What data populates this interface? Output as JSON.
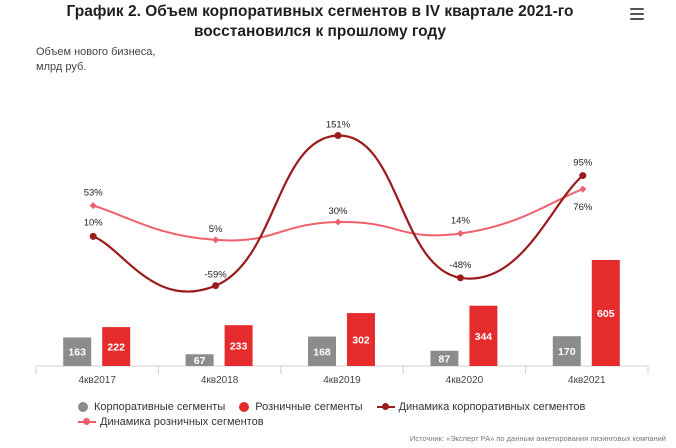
{
  "title_line1": "График 2. Объем корпоративных сегментов в IV квартале 2021-го",
  "title_line2": "восстановился к прошлому году",
  "menu_icon": "hamburger-menu-icon",
  "source": "Источник: «Эксперт РА» по данным анкетирования лизинговых компаний",
  "chart_data": {
    "type": "bar",
    "ylabel_line1": "Объем нового бизнеса,",
    "ylabel_line2": "млрд руб.",
    "categories": [
      "4кв2017",
      "4кв2018",
      "4кв2019",
      "4кв2020",
      "4кв2021"
    ],
    "series": [
      {
        "name": "Корпоративные сегменты",
        "type": "bar",
        "color": "#8c8c8c",
        "values": [
          163,
          67,
          168,
          87,
          170
        ]
      },
      {
        "name": "Розничные сегменты",
        "type": "bar",
        "color": "#e52b2b",
        "values": [
          222,
          233,
          302,
          344,
          605
        ]
      },
      {
        "name": "Динамика корпоративных сегментов",
        "type": "line",
        "color": "#9b1b1b",
        "values": [
          10,
          -59,
          151,
          -48,
          95
        ],
        "labels": [
          "10%",
          "-59%",
          "151%",
          "-48%",
          "95%"
        ]
      },
      {
        "name": "Динамика розничных сегментов",
        "type": "line",
        "color": "#f0606e",
        "values": [
          53,
          5,
          30,
          14,
          76
        ],
        "labels": [
          "53%",
          "5%",
          "30%",
          "14%",
          "76%"
        ]
      }
    ],
    "grid": false,
    "legend_position": "bottom"
  }
}
